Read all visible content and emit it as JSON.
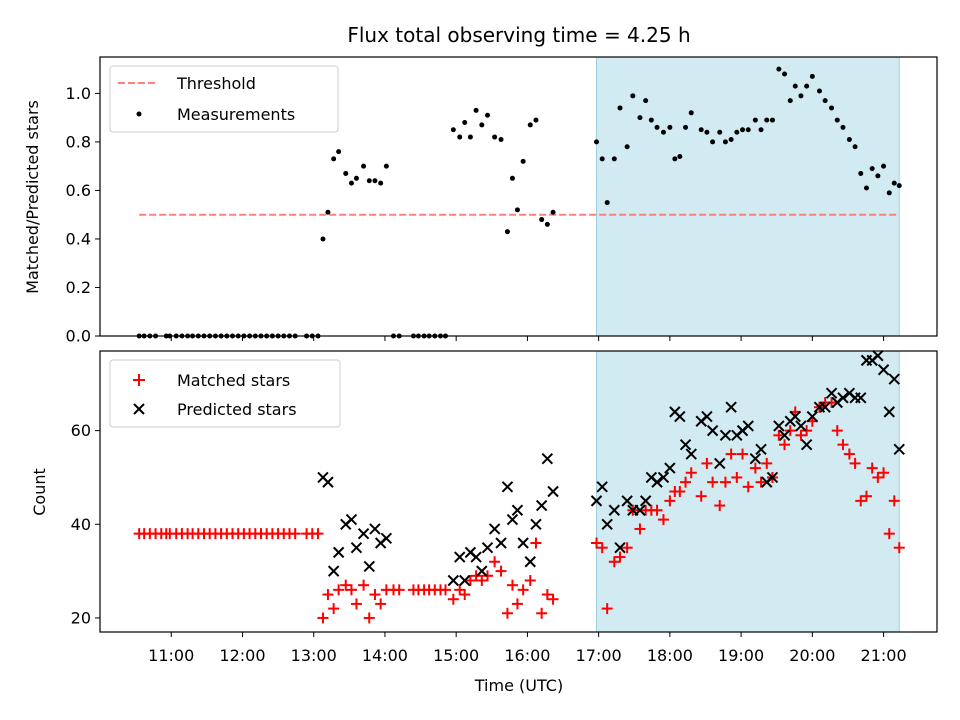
{
  "chart_data": {
    "title": "Flux total observing time = 4.25 h",
    "xlabel": "Time (UTC)",
    "x_ticks": [
      "11:00",
      "12:00",
      "13:00",
      "14:00",
      "15:00",
      "16:00",
      "17:00",
      "18:00",
      "19:00",
      "20:00",
      "21:00"
    ],
    "xlim_hours": [
      10.0,
      21.75
    ],
    "highlight_span_hours": [
      16.97,
      21.22
    ],
    "colors": {
      "highlight": "#add8e6",
      "threshold": "#ff7f7f",
      "measurements": "#000000",
      "matched": "#ff0000",
      "predicted": "#000000"
    },
    "top": {
      "type": "scatter",
      "ylabel": "Matched/Predicted stars",
      "ylim": [
        0,
        1.15
      ],
      "y_ticks": [
        "0.0",
        "0.2",
        "0.4",
        "0.6",
        "0.8",
        "1.0"
      ],
      "y_tick_values": [
        0,
        0.2,
        0.4,
        0.6,
        0.8,
        1.0
      ],
      "legend": {
        "position": "top-left",
        "threshold_label": "Threshold",
        "measurements_label": "Measurements"
      },
      "threshold": {
        "value": 0.5,
        "x_range": [
          10.55,
          21.22
        ]
      },
      "measurements": [
        [
          10.55,
          0
        ],
        [
          10.62,
          0
        ],
        [
          10.7,
          0
        ],
        [
          10.78,
          0
        ],
        [
          10.93,
          0
        ],
        [
          10.98,
          0
        ],
        [
          11.07,
          0
        ],
        [
          11.15,
          0
        ],
        [
          11.23,
          0
        ],
        [
          11.3,
          0
        ],
        [
          11.38,
          0
        ],
        [
          11.46,
          0
        ],
        [
          11.54,
          0
        ],
        [
          11.62,
          0
        ],
        [
          11.7,
          0
        ],
        [
          11.78,
          0
        ],
        [
          11.86,
          0
        ],
        [
          11.94,
          0
        ],
        [
          12.02,
          0
        ],
        [
          12.1,
          0
        ],
        [
          12.18,
          0
        ],
        [
          12.26,
          0
        ],
        [
          12.34,
          0
        ],
        [
          12.42,
          0
        ],
        [
          12.5,
          0
        ],
        [
          12.58,
          0
        ],
        [
          12.66,
          0
        ],
        [
          12.74,
          0
        ],
        [
          12.9,
          0
        ],
        [
          12.98,
          0
        ],
        [
          13.06,
          0
        ],
        [
          13.13,
          0.4
        ],
        [
          13.2,
          0.51
        ],
        [
          13.28,
          0.73
        ],
        [
          13.35,
          0.76
        ],
        [
          13.45,
          0.67
        ],
        [
          13.53,
          0.63
        ],
        [
          13.6,
          0.65
        ],
        [
          13.7,
          0.7
        ],
        [
          13.78,
          0.64
        ],
        [
          13.86,
          0.64
        ],
        [
          13.94,
          0.63
        ],
        [
          14.02,
          0.7
        ],
        [
          14.12,
          0
        ],
        [
          14.2,
          0
        ],
        [
          14.4,
          0
        ],
        [
          14.47,
          0
        ],
        [
          14.55,
          0
        ],
        [
          14.62,
          0
        ],
        [
          14.7,
          0
        ],
        [
          14.78,
          0
        ],
        [
          14.85,
          0
        ],
        [
          14.96,
          0.85
        ],
        [
          15.05,
          0.82
        ],
        [
          15.12,
          0.88
        ],
        [
          15.2,
          0.82
        ],
        [
          15.28,
          0.93
        ],
        [
          15.36,
          0.87
        ],
        [
          15.44,
          0.91
        ],
        [
          15.54,
          0.82
        ],
        [
          15.63,
          0.81
        ],
        [
          15.72,
          0.43
        ],
        [
          15.79,
          0.65
        ],
        [
          15.86,
          0.52
        ],
        [
          15.94,
          0.72
        ],
        [
          16.04,
          0.87
        ],
        [
          16.12,
          0.89
        ],
        [
          16.2,
          0.48
        ],
        [
          16.28,
          0.46
        ],
        [
          16.36,
          0.51
        ],
        [
          16.97,
          0.8
        ],
        [
          17.05,
          0.73
        ],
        [
          17.12,
          0.55
        ],
        [
          17.22,
          0.73
        ],
        [
          17.3,
          0.94
        ],
        [
          17.4,
          0.78
        ],
        [
          17.48,
          0.99
        ],
        [
          17.58,
          0.9
        ],
        [
          17.66,
          0.97
        ],
        [
          17.74,
          0.89
        ],
        [
          17.82,
          0.86
        ],
        [
          17.91,
          0.84
        ],
        [
          18.0,
          0.86
        ],
        [
          18.07,
          0.73
        ],
        [
          18.14,
          0.74
        ],
        [
          18.22,
          0.86
        ],
        [
          18.3,
          0.92
        ],
        [
          18.44,
          0.85
        ],
        [
          18.52,
          0.84
        ],
        [
          18.6,
          0.8
        ],
        [
          18.7,
          0.84
        ],
        [
          18.78,
          0.8
        ],
        [
          18.86,
          0.81
        ],
        [
          18.94,
          0.84
        ],
        [
          19.02,
          0.85
        ],
        [
          19.1,
          0.85
        ],
        [
          19.2,
          0.89
        ],
        [
          19.28,
          0.85
        ],
        [
          19.36,
          0.89
        ],
        [
          19.44,
          0.89
        ],
        [
          19.53,
          1.1
        ],
        [
          19.61,
          1.08
        ],
        [
          19.69,
          0.97
        ],
        [
          19.76,
          1.03
        ],
        [
          19.84,
          0.99
        ],
        [
          19.92,
          1.03
        ],
        [
          20.0,
          1.07
        ],
        [
          20.1,
          1.01
        ],
        [
          20.18,
          0.97
        ],
        [
          20.27,
          0.94
        ],
        [
          20.35,
          0.89
        ],
        [
          20.43,
          0.86
        ],
        [
          20.52,
          0.81
        ],
        [
          20.6,
          0.78
        ],
        [
          20.68,
          0.67
        ],
        [
          20.76,
          0.61
        ],
        [
          20.84,
          0.69
        ],
        [
          20.92,
          0.66
        ],
        [
          21.0,
          0.7
        ],
        [
          21.08,
          0.59
        ],
        [
          21.15,
          0.63
        ],
        [
          21.22,
          0.62
        ]
      ]
    },
    "bottom": {
      "type": "scatter",
      "ylabel": "Count",
      "ylim": [
        17,
        77
      ],
      "y_ticks": [
        "20",
        "40",
        "60"
      ],
      "y_tick_values": [
        20,
        40,
        60
      ],
      "legend": {
        "position": "top-left",
        "matched_label": "Matched stars",
        "predicted_label": "Predicted stars"
      },
      "matched": [
        [
          10.55,
          38
        ],
        [
          10.62,
          38
        ],
        [
          10.7,
          38
        ],
        [
          10.78,
          38
        ],
        [
          10.86,
          38
        ],
        [
          10.93,
          38
        ],
        [
          10.98,
          38
        ],
        [
          11.07,
          38
        ],
        [
          11.15,
          38
        ],
        [
          11.23,
          38
        ],
        [
          11.3,
          38
        ],
        [
          11.38,
          38
        ],
        [
          11.46,
          38
        ],
        [
          11.54,
          38
        ],
        [
          11.62,
          38
        ],
        [
          11.7,
          38
        ],
        [
          11.78,
          38
        ],
        [
          11.86,
          38
        ],
        [
          11.94,
          38
        ],
        [
          12.02,
          38
        ],
        [
          12.1,
          38
        ],
        [
          12.18,
          38
        ],
        [
          12.26,
          38
        ],
        [
          12.34,
          38
        ],
        [
          12.42,
          38
        ],
        [
          12.5,
          38
        ],
        [
          12.58,
          38
        ],
        [
          12.66,
          38
        ],
        [
          12.74,
          38
        ],
        [
          12.9,
          38
        ],
        [
          12.98,
          38
        ],
        [
          13.06,
          38
        ],
        [
          13.13,
          20
        ],
        [
          13.2,
          25
        ],
        [
          13.28,
          22
        ],
        [
          13.35,
          26
        ],
        [
          13.45,
          27
        ],
        [
          13.53,
          26
        ],
        [
          13.6,
          23
        ],
        [
          13.7,
          27
        ],
        [
          13.78,
          20
        ],
        [
          13.86,
          25
        ],
        [
          13.94,
          23
        ],
        [
          14.02,
          26
        ],
        [
          14.12,
          26
        ],
        [
          14.2,
          26
        ],
        [
          14.4,
          26
        ],
        [
          14.47,
          26
        ],
        [
          14.55,
          26
        ],
        [
          14.62,
          26
        ],
        [
          14.7,
          26
        ],
        [
          14.78,
          26
        ],
        [
          14.85,
          26
        ],
        [
          14.96,
          24
        ],
        [
          15.05,
          26
        ],
        [
          15.12,
          25
        ],
        [
          15.2,
          28
        ],
        [
          15.28,
          29
        ],
        [
          15.36,
          28
        ],
        [
          15.44,
          29
        ],
        [
          15.54,
          32
        ],
        [
          15.63,
          30
        ],
        [
          15.72,
          21
        ],
        [
          15.79,
          27
        ],
        [
          15.86,
          23
        ],
        [
          15.94,
          26
        ],
        [
          16.04,
          28
        ],
        [
          16.12,
          36
        ],
        [
          16.2,
          21
        ],
        [
          16.28,
          25
        ],
        [
          16.36,
          24
        ],
        [
          16.97,
          36
        ],
        [
          17.05,
          35
        ],
        [
          17.12,
          22
        ],
        [
          17.22,
          32
        ],
        [
          17.3,
          33
        ],
        [
          17.4,
          35
        ],
        [
          17.48,
          43
        ],
        [
          17.58,
          39
        ],
        [
          17.66,
          43
        ],
        [
          17.74,
          43
        ],
        [
          17.82,
          43
        ],
        [
          17.91,
          41
        ],
        [
          18.0,
          45
        ],
        [
          18.07,
          47
        ],
        [
          18.14,
          47
        ],
        [
          18.22,
          49
        ],
        [
          18.3,
          51
        ],
        [
          18.44,
          46
        ],
        [
          18.52,
          53
        ],
        [
          18.6,
          49
        ],
        [
          18.7,
          44
        ],
        [
          18.78,
          49
        ],
        [
          18.86,
          55
        ],
        [
          18.94,
          50
        ],
        [
          19.02,
          55
        ],
        [
          19.1,
          48
        ],
        [
          19.2,
          52
        ],
        [
          19.28,
          49
        ],
        [
          19.36,
          53
        ],
        [
          19.44,
          50
        ],
        [
          19.53,
          59
        ],
        [
          19.61,
          57
        ],
        [
          19.69,
          60
        ],
        [
          19.76,
          64
        ],
        [
          19.84,
          59
        ],
        [
          19.92,
          60
        ],
        [
          20.0,
          62
        ],
        [
          20.1,
          65
        ],
        [
          20.18,
          66
        ],
        [
          20.27,
          66
        ],
        [
          20.35,
          60
        ],
        [
          20.43,
          57
        ],
        [
          20.52,
          55
        ],
        [
          20.6,
          53
        ],
        [
          20.68,
          45
        ],
        [
          20.76,
          46
        ],
        [
          20.84,
          52
        ],
        [
          20.92,
          50
        ],
        [
          21.0,
          51
        ],
        [
          21.08,
          38
        ],
        [
          21.15,
          45
        ],
        [
          21.22,
          35
        ]
      ],
      "predicted": [
        [
          13.13,
          50
        ],
        [
          13.2,
          49
        ],
        [
          13.28,
          30
        ],
        [
          13.35,
          34
        ],
        [
          13.45,
          40
        ],
        [
          13.53,
          41
        ],
        [
          13.6,
          35
        ],
        [
          13.7,
          38
        ],
        [
          13.78,
          31
        ],
        [
          13.86,
          39
        ],
        [
          13.94,
          36
        ],
        [
          14.02,
          37
        ],
        [
          14.96,
          28
        ],
        [
          15.05,
          33
        ],
        [
          15.12,
          28
        ],
        [
          15.2,
          34
        ],
        [
          15.28,
          33
        ],
        [
          15.36,
          30
        ],
        [
          15.44,
          35
        ],
        [
          15.54,
          39
        ],
        [
          15.63,
          36
        ],
        [
          15.72,
          48
        ],
        [
          15.79,
          41
        ],
        [
          15.86,
          43
        ],
        [
          15.94,
          36
        ],
        [
          16.04,
          32
        ],
        [
          16.12,
          40
        ],
        [
          16.2,
          44
        ],
        [
          16.28,
          54
        ],
        [
          16.36,
          47
        ],
        [
          16.97,
          45
        ],
        [
          17.05,
          48
        ],
        [
          17.12,
          40
        ],
        [
          17.22,
          43
        ],
        [
          17.3,
          35
        ],
        [
          17.4,
          45
        ],
        [
          17.48,
          43
        ],
        [
          17.58,
          43
        ],
        [
          17.66,
          45
        ],
        [
          17.74,
          50
        ],
        [
          17.82,
          49
        ],
        [
          17.91,
          50
        ],
        [
          18.0,
          52
        ],
        [
          18.07,
          64
        ],
        [
          18.14,
          63
        ],
        [
          18.22,
          57
        ],
        [
          18.3,
          55
        ],
        [
          18.44,
          62
        ],
        [
          18.52,
          63
        ],
        [
          18.6,
          60
        ],
        [
          18.7,
          53
        ],
        [
          18.78,
          59
        ],
        [
          18.86,
          65
        ],
        [
          18.94,
          59
        ],
        [
          19.02,
          60
        ],
        [
          19.1,
          61
        ],
        [
          19.2,
          54
        ],
        [
          19.28,
          56
        ],
        [
          19.36,
          49
        ],
        [
          19.44,
          50
        ],
        [
          19.53,
          61
        ],
        [
          19.61,
          59
        ],
        [
          19.69,
          62
        ],
        [
          19.76,
          63
        ],
        [
          19.84,
          61
        ],
        [
          19.92,
          57
        ],
        [
          20.0,
          63
        ],
        [
          20.1,
          65
        ],
        [
          20.18,
          65
        ],
        [
          20.27,
          68
        ],
        [
          20.35,
          66
        ],
        [
          20.43,
          67
        ],
        [
          20.52,
          68
        ],
        [
          20.6,
          67
        ],
        [
          20.68,
          67
        ],
        [
          20.76,
          75
        ],
        [
          20.84,
          75
        ],
        [
          20.92,
          76
        ],
        [
          21.0,
          73
        ],
        [
          21.08,
          64
        ],
        [
          21.15,
          71
        ],
        [
          21.22,
          56
        ]
      ]
    }
  }
}
